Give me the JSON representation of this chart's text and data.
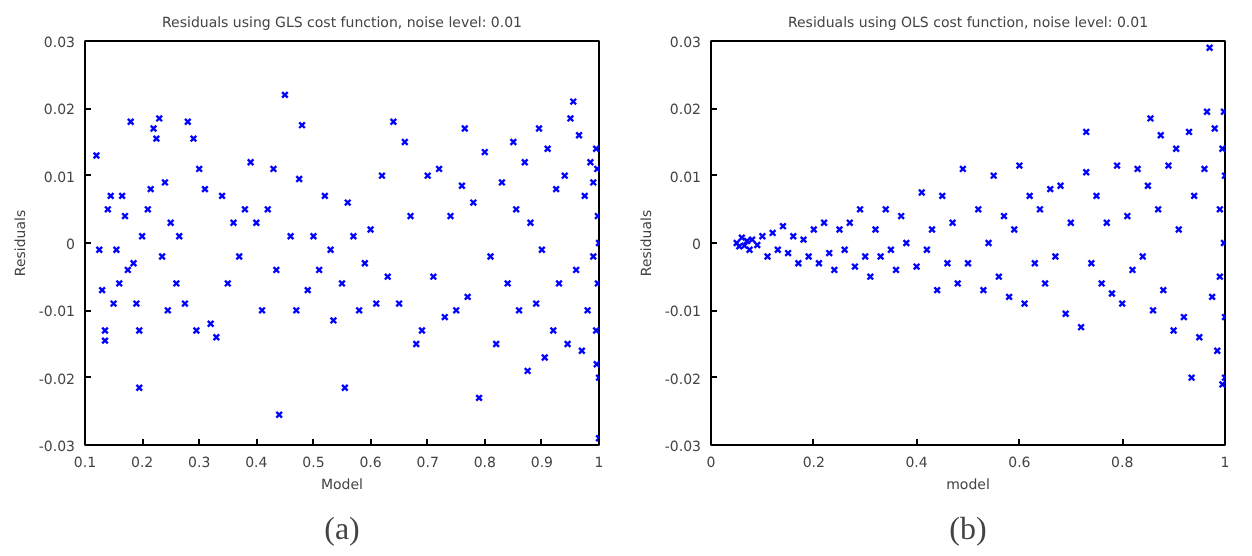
{
  "chart_data": [
    {
      "type": "scatter",
      "title": "Residuals using GLS cost function, noise level: 0.01",
      "xlabel": "Model",
      "ylabel": "Residuals",
      "annotations": [
        "(a)"
      ],
      "marker": "cross",
      "grid": false,
      "xlim": [
        0.1,
        1
      ],
      "xticks": [
        0.1,
        0.2,
        0.3,
        0.4,
        0.5,
        0.6,
        0.7,
        0.8,
        0.9,
        1
      ],
      "ylim": [
        -0.03,
        0.03
      ],
      "yticks": [
        -0.03,
        -0.02,
        -0.01,
        0,
        0.01,
        0.02,
        0.03
      ],
      "series": [
        {
          "color": "#0000ff",
          "x": [
            0.12,
            0.125,
            0.13,
            0.135,
            0.135,
            0.14,
            0.145,
            0.15,
            0.155,
            0.16,
            0.165,
            0.17,
            0.175,
            0.18,
            0.185,
            0.19,
            0.195,
            0.195,
            0.2,
            0.21,
            0.215,
            0.22,
            0.225,
            0.23,
            0.235,
            0.24,
            0.245,
            0.25,
            0.26,
            0.265,
            0.275,
            0.28,
            0.29,
            0.295,
            0.3,
            0.31,
            0.32,
            0.33,
            0.34,
            0.35,
            0.36,
            0.37,
            0.38,
            0.39,
            0.4,
            0.41,
            0.42,
            0.43,
            0.435,
            0.44,
            0.45,
            0.46,
            0.47,
            0.475,
            0.48,
            0.49,
            0.5,
            0.51,
            0.52,
            0.53,
            0.535,
            0.55,
            0.555,
            0.56,
            0.57,
            0.58,
            0.59,
            0.6,
            0.61,
            0.62,
            0.63,
            0.64,
            0.65,
            0.66,
            0.67,
            0.68,
            0.69,
            0.7,
            0.71,
            0.72,
            0.73,
            0.74,
            0.75,
            0.76,
            0.765,
            0.77,
            0.78,
            0.79,
            0.8,
            0.81,
            0.82,
            0.83,
            0.84,
            0.85,
            0.855,
            0.86,
            0.87,
            0.875,
            0.88,
            0.89,
            0.895,
            0.9,
            0.905,
            0.91,
            0.92,
            0.925,
            0.93,
            0.94,
            0.945,
            0.95,
            0.955,
            0.96,
            0.965,
            0.97,
            0.975,
            0.98,
            0.985,
            0.99,
            0.99,
            0.995,
            0.995,
            0.998,
            0.998,
            1.0,
            1.0,
            1.0,
            0.997,
            0.996
          ],
          "values": [
            0.013,
            -0.001,
            -0.007,
            -0.013,
            -0.0145,
            0.005,
            0.007,
            -0.009,
            -0.001,
            -0.006,
            0.007,
            0.004,
            -0.004,
            0.018,
            -0.003,
            -0.009,
            -0.013,
            -0.0215,
            0.001,
            0.005,
            0.008,
            0.017,
            0.0155,
            0.0185,
            -0.002,
            0.009,
            -0.01,
            0.003,
            -0.006,
            0.001,
            -0.009,
            0.018,
            0.0155,
            -0.013,
            0.011,
            0.008,
            -0.012,
            -0.014,
            0.007,
            -0.006,
            0.003,
            -0.002,
            0.005,
            0.012,
            0.003,
            -0.01,
            0.005,
            0.011,
            -0.004,
            -0.0255,
            0.022,
            0.001,
            -0.01,
            0.0095,
            0.0175,
            -0.007,
            0.001,
            -0.004,
            0.007,
            -0.001,
            -0.0115,
            -0.006,
            -0.0215,
            0.006,
            0.001,
            -0.01,
            -0.003,
            0.002,
            -0.009,
            0.01,
            -0.005,
            0.018,
            -0.009,
            0.015,
            0.004,
            -0.015,
            -0.013,
            0.01,
            -0.005,
            0.011,
            -0.011,
            0.004,
            -0.01,
            0.0085,
            0.017,
            -0.008,
            0.006,
            -0.023,
            0.0135,
            -0.002,
            -0.015,
            0.009,
            -0.006,
            0.015,
            0.005,
            -0.01,
            0.012,
            -0.019,
            0.003,
            -0.009,
            0.017,
            -0.001,
            -0.017,
            0.014,
            -0.013,
            0.008,
            -0.006,
            0.01,
            -0.015,
            0.0185,
            0.021,
            -0.004,
            0.016,
            -0.016,
            0.007,
            -0.01,
            0.012,
            -0.002,
            0.009,
            -0.013,
            0.014,
            -0.006,
            0.004,
            -0.02,
            -0.029,
            0.0,
            0.011,
            -0.018
          ]
        }
      ]
    },
    {
      "type": "scatter",
      "title": "Residuals using OLS cost function, noise level: 0.01",
      "xlabel": "model",
      "ylabel": "Residuals",
      "annotations": [
        "(b)"
      ],
      "marker": "cross",
      "grid": false,
      "xlim": [
        0,
        1
      ],
      "xticks": [
        0,
        0.2,
        0.4,
        0.6,
        0.8,
        1
      ],
      "ylim": [
        -0.03,
        0.03
      ],
      "yticks": [
        -0.03,
        -0.02,
        -0.01,
        0,
        0.01,
        0.02,
        0.03
      ],
      "series": [
        {
          "color": "#0000ff",
          "x": [
            0.05,
            0.055,
            0.06,
            0.065,
            0.07,
            0.075,
            0.08,
            0.09,
            0.1,
            0.11,
            0.12,
            0.13,
            0.14,
            0.15,
            0.16,
            0.17,
            0.18,
            0.19,
            0.2,
            0.21,
            0.22,
            0.23,
            0.24,
            0.25,
            0.26,
            0.27,
            0.28,
            0.29,
            0.3,
            0.31,
            0.32,
            0.33,
            0.34,
            0.35,
            0.36,
            0.37,
            0.38,
            0.4,
            0.41,
            0.42,
            0.43,
            0.44,
            0.45,
            0.46,
            0.47,
            0.48,
            0.49,
            0.5,
            0.52,
            0.53,
            0.54,
            0.55,
            0.56,
            0.57,
            0.58,
            0.59,
            0.6,
            0.61,
            0.62,
            0.63,
            0.64,
            0.65,
            0.66,
            0.67,
            0.68,
            0.69,
            0.7,
            0.72,
            0.73,
            0.73,
            0.74,
            0.75,
            0.76,
            0.77,
            0.78,
            0.79,
            0.8,
            0.81,
            0.82,
            0.83,
            0.84,
            0.85,
            0.855,
            0.86,
            0.87,
            0.875,
            0.88,
            0.89,
            0.9,
            0.905,
            0.91,
            0.92,
            0.93,
            0.935,
            0.94,
            0.95,
            0.96,
            0.965,
            0.97,
            0.975,
            0.98,
            0.985,
            0.99,
            0.99,
            0.995,
            0.995,
            0.998,
            0.998,
            1.0,
            1.0,
            1.0
          ],
          "values": [
            0.0,
            -0.0005,
            0.0008,
            -0.0004,
            0.0003,
            -0.001,
            0.0005,
            -0.0003,
            0.001,
            -0.002,
            0.0015,
            -0.001,
            0.0025,
            -0.0015,
            0.001,
            -0.003,
            0.0005,
            -0.002,
            0.002,
            -0.003,
            0.003,
            -0.0015,
            -0.004,
            0.002,
            -0.001,
            0.003,
            -0.0035,
            0.005,
            -0.002,
            -0.005,
            0.002,
            -0.002,
            0.005,
            -0.001,
            -0.004,
            0.004,
            0.0,
            -0.0035,
            0.0075,
            -0.001,
            0.002,
            -0.007,
            0.007,
            -0.003,
            0.003,
            -0.006,
            0.011,
            -0.003,
            0.005,
            -0.007,
            0.0,
            0.01,
            -0.005,
            0.004,
            -0.008,
            0.002,
            0.0115,
            -0.009,
            0.007,
            -0.003,
            0.005,
            -0.006,
            0.008,
            -0.002,
            0.0085,
            -0.0105,
            0.003,
            -0.0125,
            0.0165,
            0.0105,
            -0.003,
            0.007,
            -0.006,
            0.003,
            -0.0075,
            0.0115,
            -0.009,
            0.004,
            -0.004,
            0.011,
            -0.002,
            0.0085,
            0.0185,
            -0.01,
            0.005,
            0.016,
            -0.007,
            0.0115,
            -0.013,
            0.014,
            0.002,
            -0.011,
            0.0165,
            -0.02,
            0.007,
            -0.014,
            0.011,
            0.0195,
            0.029,
            -0.008,
            0.017,
            -0.016,
            0.005,
            -0.005,
            0.014,
            -0.021,
            0.0195,
            0.0,
            -0.02,
            0.01,
            -0.011
          ]
        }
      ]
    }
  ]
}
